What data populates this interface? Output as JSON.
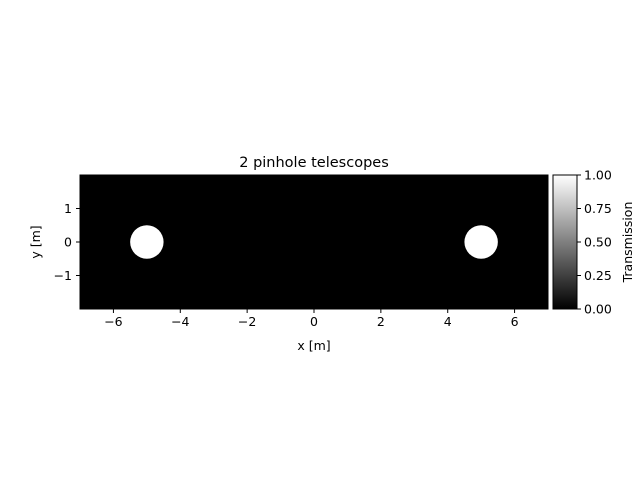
{
  "chart_data": {
    "type": "heatmap",
    "title": "2 pinhole telescopes",
    "xlabel": "x [m]",
    "ylabel": "y [m]",
    "xlim": [
      -7,
      7
    ],
    "ylim": [
      -2,
      2
    ],
    "x_ticks": [
      -6,
      -4,
      -2,
      0,
      2,
      4,
      6
    ],
    "x_tick_labels": [
      "−6",
      "−4",
      "−2",
      "0",
      "2",
      "4",
      "6"
    ],
    "y_ticks": [
      -1,
      0,
      1
    ],
    "y_tick_labels": [
      "−1",
      "0",
      "1"
    ],
    "background_value": 0.0,
    "apertures": [
      {
        "center_x": -5,
        "center_y": 0,
        "radius": 0.5,
        "value": 1.0
      },
      {
        "center_x": 5,
        "center_y": 0,
        "radius": 0.5,
        "value": 1.0
      }
    ],
    "colormap": "gray",
    "colorbar": {
      "label": "Transmission",
      "range": [
        0.0,
        1.0
      ],
      "ticks": [
        0.0,
        0.25,
        0.5,
        0.75,
        1.0
      ],
      "tick_labels": [
        "0.00",
        "0.25",
        "0.50",
        "0.75",
        "1.00"
      ]
    },
    "grid": false
  }
}
